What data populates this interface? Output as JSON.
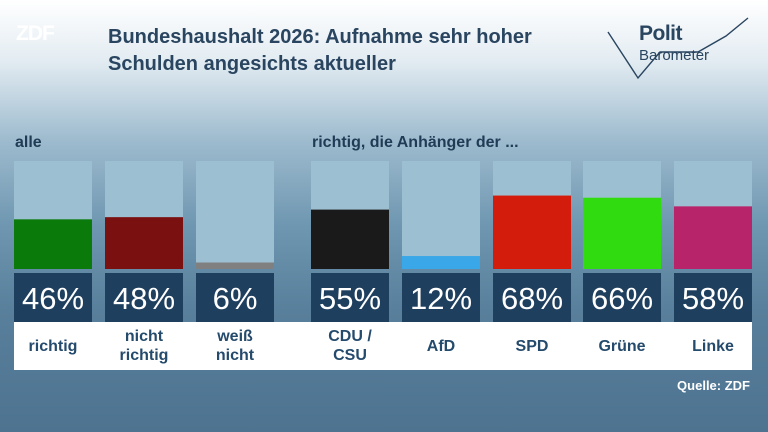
{
  "logo": "ZDF",
  "title": "Bundeshaushalt 2026: Aufnahme sehr hoher Schulden angesichts aktueller",
  "brand": {
    "line1": "Polit",
    "line2": "Barometer"
  },
  "labels": {
    "all": "alle",
    "supporters": "richtig, die Anhänger der ..."
  },
  "source": "Quelle: ZDF",
  "colors": {
    "track": "#9dbfd2",
    "value_box": "#1f3f5f",
    "category_text": "#244a6c"
  },
  "chart_data": {
    "type": "bar",
    "ylim": [
      0,
      100
    ],
    "categories": [
      "richtig",
      "nicht richtig",
      "weiß nicht",
      "CDU / CSU",
      "AfD",
      "SPD",
      "Grüne",
      "Linke"
    ],
    "category_lines": [
      [
        "richtig"
      ],
      [
        "nicht",
        "richtig"
      ],
      [
        "weiß",
        "nicht"
      ],
      [
        "CDU /",
        "CSU"
      ],
      [
        "AfD"
      ],
      [
        "SPD"
      ],
      [
        "Grüne"
      ],
      [
        "Linke"
      ]
    ],
    "values": [
      46,
      48,
      6,
      55,
      12,
      68,
      66,
      58
    ],
    "value_labels": [
      "46%",
      "48%",
      "6%",
      "55%",
      "12%",
      "68%",
      "66%",
      "58%"
    ],
    "colors": [
      "#0a7a0a",
      "#7a1010",
      "#808080",
      "#1a1a1a",
      "#3aa8e8",
      "#d41c0c",
      "#30dc10",
      "#b8246a"
    ],
    "groups": [
      {
        "label": "alle",
        "categories": [
          "richtig",
          "nicht richtig",
          "weiß nicht"
        ]
      },
      {
        "label": "richtig, die Anhänger der ...",
        "categories": [
          "CDU / CSU",
          "AfD",
          "SPD",
          "Grüne",
          "Linke"
        ]
      }
    ]
  }
}
